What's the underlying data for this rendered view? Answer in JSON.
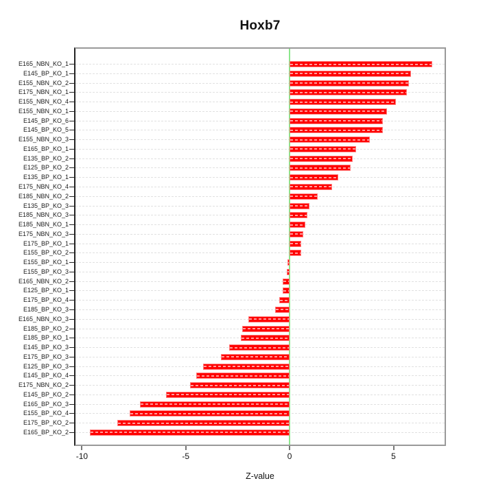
{
  "chart_data": {
    "type": "bar",
    "orientation": "horizontal",
    "title": "Hoxb7",
    "xlabel": "Z-value",
    "ylabel": "",
    "legend_position": "none",
    "grid": "per-row horizontal dashed gridlines",
    "xlim": [
      -10.31,
      7.46
    ],
    "xticks": [
      -10,
      -5,
      0,
      5
    ],
    "categories": [
      "E165_NBN_KO_1",
      "E145_BP_KO_1",
      "E155_NBN_KO_2",
      "E175_NBN_KO_1",
      "E155_NBN_KO_4",
      "E155_NBN_KO_1",
      "E145_BP_KO_6",
      "E145_BP_KO_5",
      "E155_NBN_KO_3",
      "E165_BP_KO_1",
      "E135_BP_KO_2",
      "E125_BP_KO_2",
      "E135_BP_KO_1",
      "E175_NBN_KO_4",
      "E185_NBN_KO_2",
      "E135_BP_KO_3",
      "E185_NBN_KO_3",
      "E185_NBN_KO_1",
      "E175_NBN_KO_3",
      "E175_BP_KO_1",
      "E155_BP_KO_2",
      "E155_BP_KO_1",
      "E155_BP_KO_3",
      "E165_NBN_KO_2",
      "E125_BP_KO_1",
      "E175_BP_KO_4",
      "E185_BP_KO_3",
      "E165_NBN_KO_3",
      "E185_BP_KO_2",
      "E185_BP_KO_1",
      "E145_BP_KO_3",
      "E175_BP_KO_3",
      "E125_BP_KO_3",
      "E145_BP_KO_4",
      "E175_NBN_KO_2",
      "E145_BP_KO_2",
      "E165_BP_KO_3",
      "E155_BP_KO_4",
      "E175_BP_KO_2",
      "E165_BP_KO_2"
    ],
    "values": [
      6.85,
      5.85,
      5.75,
      5.65,
      5.1,
      4.7,
      4.5,
      4.5,
      3.85,
      3.2,
      3.05,
      2.95,
      2.35,
      2.05,
      1.35,
      0.95,
      0.85,
      0.75,
      0.65,
      0.55,
      0.55,
      -0.1,
      -0.15,
      -0.35,
      -0.35,
      -0.5,
      -0.7,
      -2.0,
      -2.3,
      -2.35,
      -2.9,
      -3.3,
      -4.15,
      -4.5,
      -4.8,
      -5.95,
      -7.2,
      -7.7,
      -8.3,
      -9.6
    ],
    "colors": {
      "bar_fill": "#ff0000",
      "bar_border": "#ff7d7d",
      "zero_line": "#8ce68c",
      "gridline": "#e0e0e0",
      "frame": "#999999",
      "text": "#000000"
    }
  }
}
